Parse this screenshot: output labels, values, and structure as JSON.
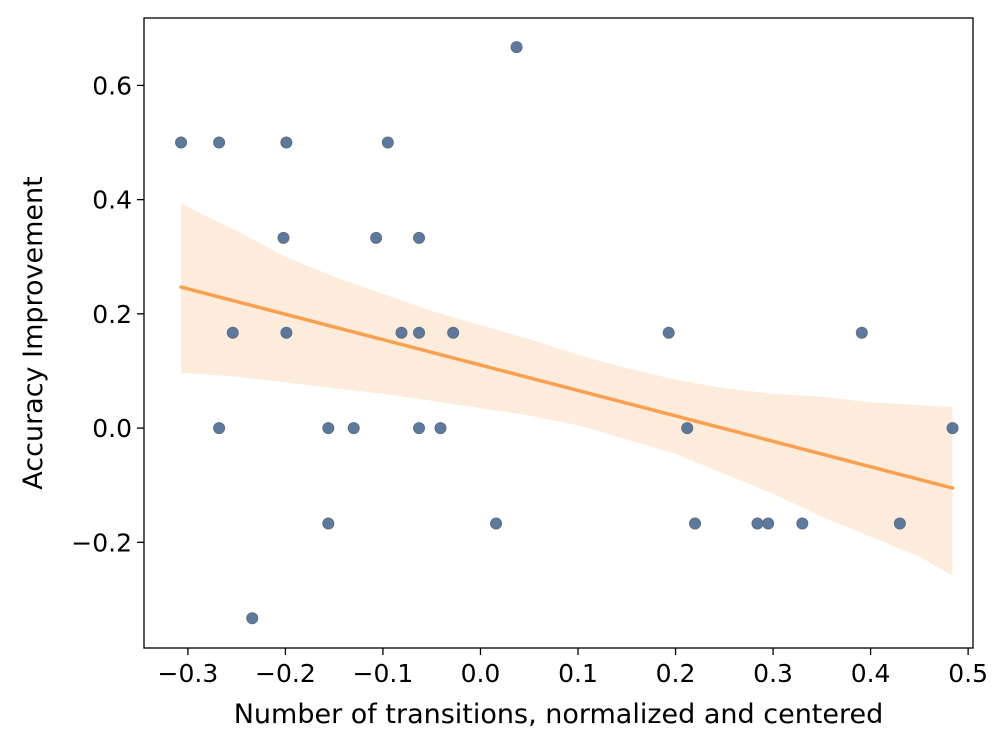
{
  "chart_data": {
    "type": "scatter",
    "title": "",
    "xlabel": "Number of transitions, normalized and centered",
    "ylabel": "Accuracy Improvement",
    "xlim": [
      -0.345,
      0.505
    ],
    "ylim": [
      -0.385,
      0.718
    ],
    "x_ticks": [
      -0.3,
      -0.2,
      -0.1,
      0.0,
      0.1,
      0.2,
      0.3,
      0.4,
      0.5
    ],
    "x_tick_labels": [
      "−0.3",
      "−0.2",
      "−0.1",
      "0.0",
      "0.1",
      "0.2",
      "0.3",
      "0.4",
      "0.5"
    ],
    "y_ticks": [
      -0.2,
      0.0,
      0.2,
      0.4,
      0.6
    ],
    "y_tick_labels": [
      "−0.2",
      "0.0",
      "0.2",
      "0.4",
      "0.6"
    ],
    "grid": false,
    "colors": {
      "points": "#4a6a94",
      "points_edge": "#5f6f80",
      "fit_line": "#f9a04e",
      "confidence_band": "#fdebdc"
    },
    "points": {
      "x": [
        -0.307,
        -0.268,
        -0.199,
        -0.095,
        0.037,
        -0.202,
        -0.107,
        -0.063,
        -0.254,
        -0.199,
        -0.081,
        -0.063,
        -0.028,
        0.193,
        0.391,
        -0.268,
        -0.156,
        -0.13,
        -0.063,
        -0.041,
        0.212,
        0.484,
        -0.156,
        0.016,
        0.22,
        0.284,
        0.295,
        0.33,
        0.43,
        -0.234
      ],
      "y": [
        0.5,
        0.5,
        0.5,
        0.5,
        0.667,
        0.333,
        0.333,
        0.333,
        0.167,
        0.167,
        0.167,
        0.167,
        0.167,
        0.167,
        0.167,
        0.0,
        0.0,
        0.0,
        0.0,
        0.0,
        0.0,
        0.0,
        -0.167,
        -0.167,
        -0.167,
        -0.167,
        -0.167,
        -0.167,
        -0.167,
        -0.333
      ]
    },
    "fit_line": {
      "x": [
        -0.307,
        0.484
      ],
      "y": [
        0.247,
        -0.105
      ]
    },
    "confidence_band": {
      "x": [
        -0.307,
        -0.25,
        -0.2,
        -0.15,
        -0.1,
        -0.05,
        0.0,
        0.05,
        0.1,
        0.15,
        0.2,
        0.25,
        0.3,
        0.35,
        0.4,
        0.45,
        0.484
      ],
      "upper": [
        0.393,
        0.345,
        0.3,
        0.265,
        0.235,
        0.205,
        0.18,
        0.156,
        0.128,
        0.105,
        0.085,
        0.07,
        0.06,
        0.055,
        0.045,
        0.04,
        0.037
      ],
      "lower": [
        0.097,
        0.09,
        0.08,
        0.07,
        0.06,
        0.048,
        0.035,
        0.022,
        0.005,
        -0.02,
        -0.045,
        -0.08,
        -0.115,
        -0.155,
        -0.19,
        -0.225,
        -0.258
      ]
    }
  }
}
